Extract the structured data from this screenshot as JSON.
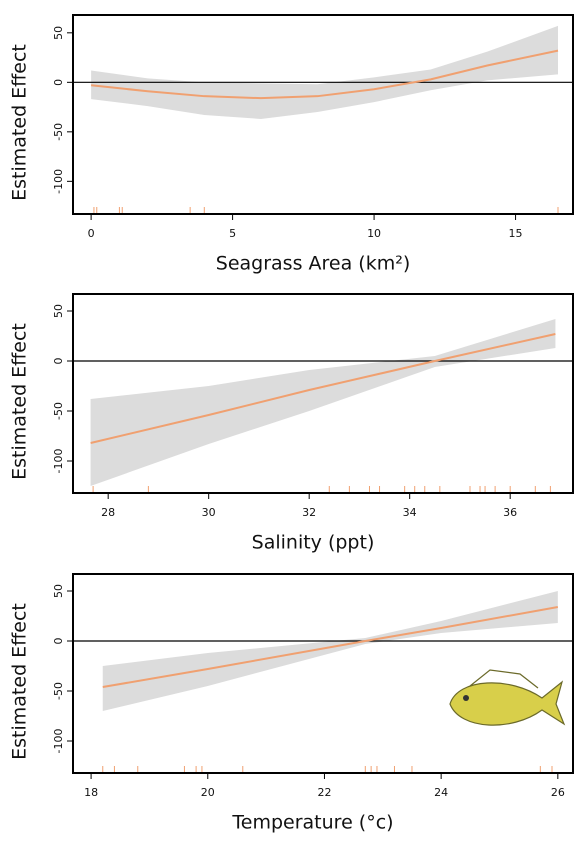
{
  "chart_data": [
    {
      "type": "line",
      "xlabel": "Seagrass Area (km²)",
      "ylabel": "Estimated Effect",
      "x": [
        0,
        2,
        4,
        6,
        8,
        10,
        12,
        14,
        16.5
      ],
      "values": [
        -3,
        -9,
        -14,
        -16,
        -14,
        -7,
        3,
        17,
        32
      ],
      "lower": [
        -17,
        -24,
        -33,
        -37,
        -30,
        -20,
        -8,
        2,
        8
      ],
      "upper": [
        12,
        4,
        0,
        -1,
        -2,
        5,
        13,
        31,
        57
      ],
      "rug": [
        0.1,
        0.2,
        1,
        1.1,
        3.5,
        4,
        16.5
      ],
      "color": "#f0a070",
      "band_color": "#dcdcdc",
      "xlim": [
        -0.64,
        17.03
      ],
      "ylim": [
        -133,
        68
      ],
      "xticks": [
        0,
        5,
        10,
        15
      ],
      "yticks": [
        50,
        0,
        -50,
        -100
      ]
    },
    {
      "type": "line",
      "xlabel": "Salinity (ppt)",
      "ylabel": "Estimated Effect",
      "x": [
        27.65,
        30,
        32,
        34.5,
        36.9
      ],
      "values": [
        -82,
        -54,
        -29,
        0,
        27
      ],
      "lower": [
        -125,
        -83,
        -50,
        -6,
        13
      ],
      "upper": [
        -38,
        -25,
        -9,
        5,
        42
      ],
      "rug": [
        27.7,
        28.8,
        32.4,
        32.8,
        33.2,
        33.4,
        33.9,
        34.1,
        34.3,
        34.6,
        35.2,
        35.4,
        35.5,
        35.7,
        36,
        36.5,
        36.8
      ],
      "color": "#f0a070",
      "band_color": "#dcdcdc",
      "xlim": [
        27.3,
        37.25
      ],
      "ylim": [
        -132,
        67
      ],
      "xticks": [
        28,
        30,
        32,
        34,
        36
      ],
      "yticks": [
        50,
        0,
        -50,
        -100
      ]
    },
    {
      "type": "line",
      "xlabel": "Temperature (°c)",
      "ylabel": "Estimated Effect",
      "x": [
        18.2,
        20,
        22.7,
        24,
        26
      ],
      "values": [
        -46,
        -28,
        0,
        13,
        34
      ],
      "lower": [
        -70,
        -45,
        -3,
        8,
        18
      ],
      "upper": [
        -25,
        -12,
        3,
        20,
        50
      ],
      "rug": [
        18.2,
        18.4,
        18.8,
        19.6,
        19.8,
        19.9,
        20.6,
        22.7,
        22.8,
        22.9,
        23.2,
        23.5,
        25.7,
        25.9
      ],
      "color": "#f0a070",
      "band_color": "#dcdcdc",
      "xlim": [
        17.69,
        26.26
      ],
      "ylim": [
        -132,
        67
      ],
      "xticks": [
        18,
        20,
        22,
        24,
        26
      ],
      "yticks": [
        50,
        0,
        -50,
        -100
      ]
    }
  ]
}
